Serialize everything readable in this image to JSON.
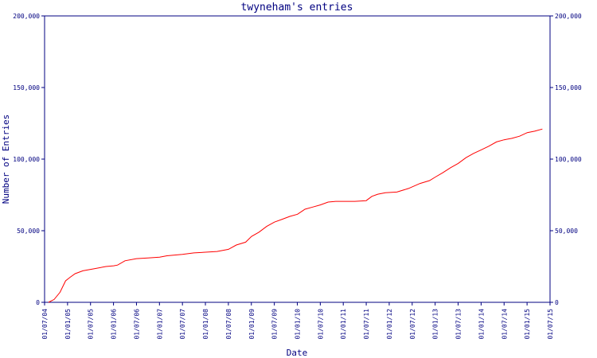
{
  "chart_data": {
    "type": "line",
    "title": "twyneham's entries",
    "xlabel": "Date",
    "ylabel": "Number of Entries",
    "ylim": [
      0,
      200000
    ],
    "x_tick_labels": [
      "01/07/04",
      "01/01/05",
      "01/07/05",
      "01/01/06",
      "01/07/06",
      "01/01/07",
      "01/07/07",
      "01/01/08",
      "01/07/08",
      "01/01/09",
      "01/07/09",
      "01/01/10",
      "01/07/10",
      "01/01/11",
      "01/07/11",
      "01/01/12",
      "01/07/12",
      "01/01/13",
      "01/07/13",
      "01/01/14",
      "01/07/14",
      "01/01/15",
      "01/07/15"
    ],
    "y_ticks": [
      0,
      50000,
      100000,
      150000,
      200000
    ],
    "y_tick_labels": [
      "0",
      "50,000",
      "100,000",
      "150,000",
      "200,000"
    ],
    "grid": false,
    "colors": {
      "line": "#ff0000",
      "axis": "#000080",
      "text": "#000080",
      "background": "#ffffff"
    },
    "series": [
      {
        "x": [
          "2004-08-01",
          "2004-09-15",
          "2004-11-01",
          "2004-12-15",
          "2005-01-20",
          "2005-03-01",
          "2005-05-01",
          "2005-08-01",
          "2005-11-01",
          "2006-01-01",
          "2006-02-01",
          "2006-04-01",
          "2006-07-01",
          "2006-10-01",
          "2007-01-01",
          "2007-03-01",
          "2007-07-01",
          "2007-10-01",
          "2008-01-01",
          "2008-04-01",
          "2008-07-01",
          "2008-09-01",
          "2008-11-15",
          "2009-01-01",
          "2009-03-01",
          "2009-05-01",
          "2009-07-01",
          "2009-09-01",
          "2009-11-01",
          "2010-01-01",
          "2010-03-01",
          "2010-05-01",
          "2010-07-01",
          "2010-09-01",
          "2010-11-01",
          "2011-01-01",
          "2011-04-01",
          "2011-07-01",
          "2011-08-15",
          "2011-10-01",
          "2011-12-01",
          "2012-03-01",
          "2012-06-01",
          "2012-09-01",
          "2012-11-15",
          "2013-01-01",
          "2013-03-01",
          "2013-05-01",
          "2013-07-01",
          "2013-09-01",
          "2013-11-01",
          "2014-01-01",
          "2014-03-01",
          "2014-05-01",
          "2014-07-01",
          "2014-09-01",
          "2014-11-01",
          "2015-01-01",
          "2015-03-01",
          "2015-05-01"
        ],
        "y": [
          0,
          2000,
          7000,
          15000,
          17500,
          20000,
          22000,
          23500,
          25000,
          25500,
          26000,
          29000,
          30500,
          31000,
          31500,
          32500,
          33500,
          34500,
          35000,
          35500,
          37000,
          40000,
          42000,
          46000,
          49000,
          53000,
          56000,
          58000,
          60000,
          61500,
          65000,
          66500,
          68000,
          70000,
          70500,
          70500,
          70500,
          71000,
          74000,
          75500,
          76500,
          77000,
          79500,
          83000,
          85000,
          87500,
          90500,
          94000,
          97000,
          101000,
          104000,
          106500,
          109000,
          112000,
          113500,
          114500,
          116000,
          118500,
          119500,
          121000
        ]
      }
    ]
  }
}
